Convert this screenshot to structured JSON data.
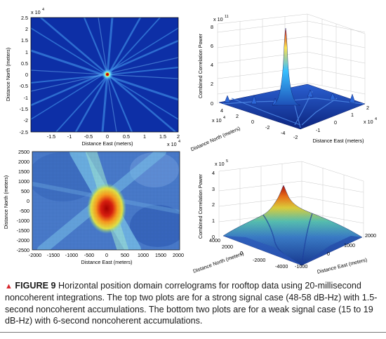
{
  "caption": {
    "figure": "FIGURE 9",
    "text": "Horizontal position domain correlograms for rooftop data using 20-millisecond noncoherent integrations. The top two plots are for a strong signal case (48-58 dB-Hz) with 1.5-second noncoherent accumulations. The bottom two plots are for a weak signal case (15 to 19 dB-Hz) with 6-second noncoherent accumulations."
  },
  "chart_data": [
    {
      "type": "heatmap",
      "title": "",
      "xlabel": "Distance East (meters)",
      "ylabel": "Distance North (meters)",
      "x_exponent": "x 10",
      "x_exponent_power": "4",
      "y_exponent": "x 10",
      "y_exponent_power": "4",
      "xlim": [
        -2,
        2
      ],
      "ylim": [
        -2.5,
        2.5
      ],
      "xticks": [
        "-1.5",
        "-1",
        "-0.5",
        "0",
        "0.5",
        "1",
        "1.5",
        "2"
      ],
      "yticks": [
        "2.5",
        "2",
        "1.5",
        "1",
        "0.5",
        "0",
        "-0.5",
        "-1",
        "-1.5",
        "-2",
        "-2.5"
      ],
      "peak": {
        "x": 0,
        "y": 0
      },
      "colormap": [
        "#0a1a8c",
        "#0e3fb3",
        "#2d8fe0",
        "#8fe0ff",
        "#ffff66",
        "#ff8800",
        "#cc0000"
      ]
    },
    {
      "type": "surface",
      "title": "",
      "zlabel": "Combined Correlation Power",
      "xlabel": "Distance North (meters)",
      "ylabel": "Distance East (meters)",
      "z_exponent": "x 10",
      "z_exponent_power": "11",
      "x_exponent": "x 10",
      "x_exponent_power": "4",
      "y_exponent": "x 10",
      "y_exponent_power": "4",
      "zticks": [
        "0",
        "2",
        "4",
        "6",
        "8"
      ],
      "xticks": [
        "4",
        "2",
        "0",
        "-2",
        "-4"
      ],
      "yticks": [
        "-2",
        "-1",
        "0",
        "1",
        "2"
      ],
      "peak": {
        "x": 0,
        "y": 0,
        "z": 8
      }
    },
    {
      "type": "heatmap",
      "title": "",
      "xlabel": "Distance East (meters)",
      "ylabel": "Distance North (meters)",
      "xlim": [
        -2000,
        2000
      ],
      "ylim": [
        -2500,
        2500
      ],
      "xticks": [
        "-2000",
        "-1500",
        "-1000",
        "-500",
        "0",
        "500",
        "1000",
        "1500",
        "2000"
      ],
      "yticks": [
        "2500",
        "2000",
        "1500",
        "1000",
        "500",
        "0",
        "-500",
        "-1000",
        "-1500",
        "-2000",
        "-2500"
      ],
      "peak": {
        "x": 0,
        "y": 0
      }
    },
    {
      "type": "surface",
      "title": "",
      "zlabel": "Combined Correlation Power",
      "xlabel": "Distance North (meters)",
      "ylabel": "Distance East (meters)",
      "z_exponent": "x 10",
      "z_exponent_power": "5",
      "zticks": [
        "0",
        "1",
        "2",
        "3",
        "4"
      ],
      "xticks": [
        "4000",
        "2000",
        "0",
        "-2000",
        "-4000"
      ],
      "yticks": [
        "-1000",
        "0",
        "1000",
        "2000"
      ],
      "peak": {
        "x": 0,
        "y": 0,
        "z": 3.5
      }
    }
  ]
}
